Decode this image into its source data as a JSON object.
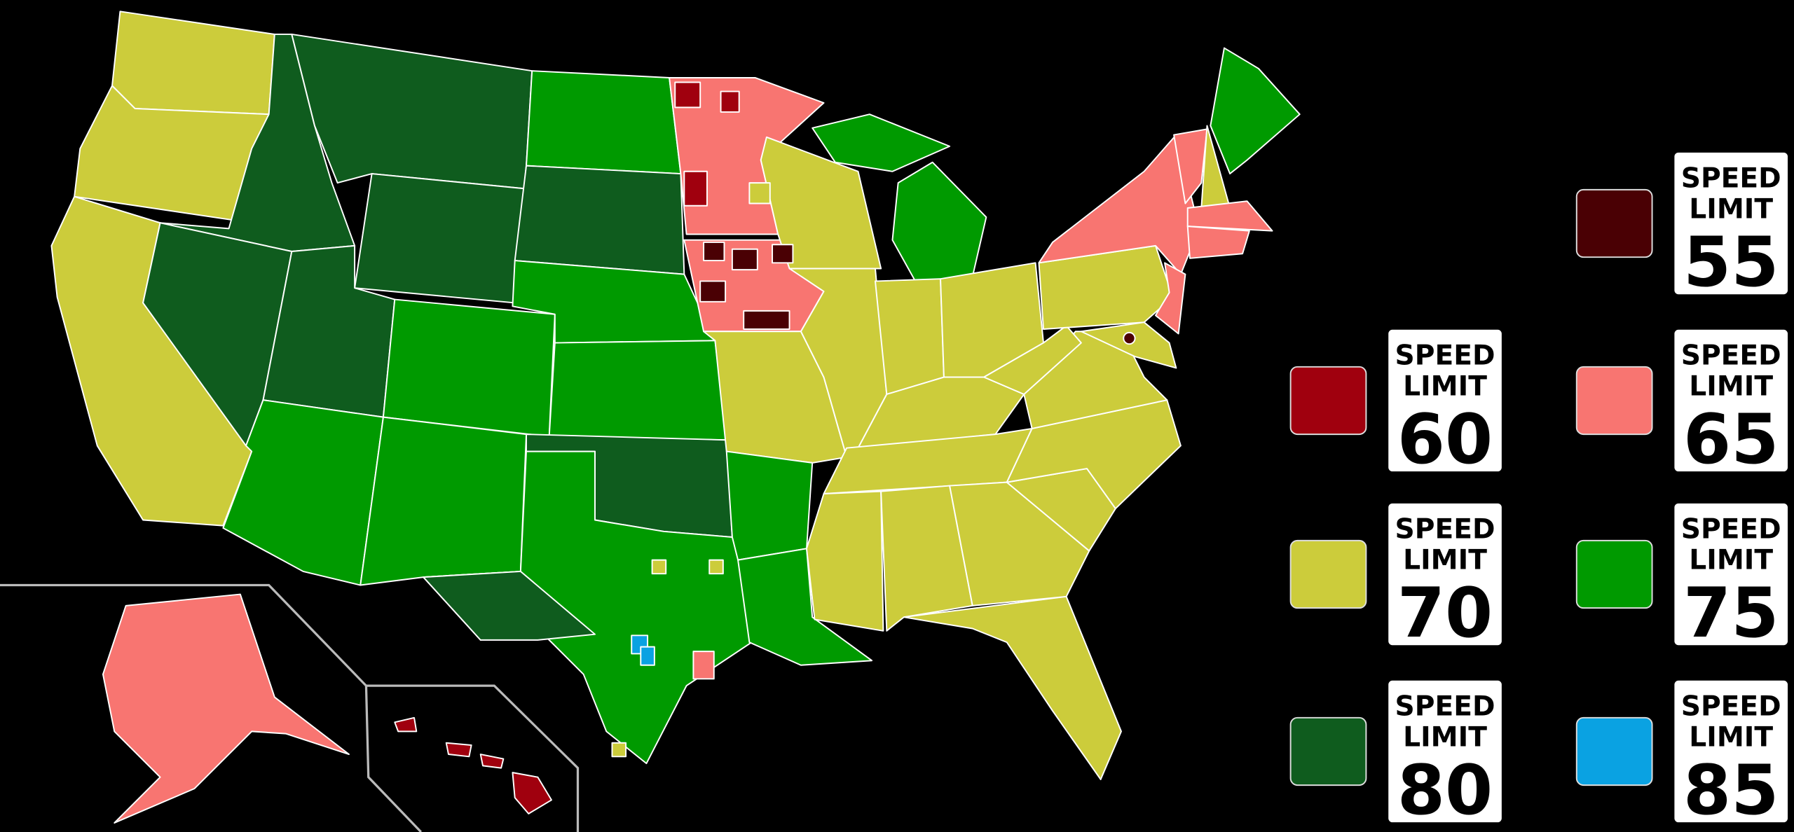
{
  "legend": {
    "items": [
      {
        "speed": "SPEED",
        "limit": "LIMIT",
        "number": "55",
        "color": "#4a0004"
      },
      {
        "speed": "SPEED",
        "limit": "LIMIT",
        "number": "60",
        "color": "#a0000e"
      },
      {
        "speed": "SPEED",
        "limit": "LIMIT",
        "number": "65",
        "color": "#f87571"
      },
      {
        "speed": "SPEED",
        "limit": "LIMIT",
        "number": "70",
        "color": "#cccc3b"
      },
      {
        "speed": "SPEED",
        "limit": "LIMIT",
        "number": "75",
        "color": "#009a00"
      },
      {
        "speed": "SPEED",
        "limit": "LIMIT",
        "number": "80",
        "color": "#0f5c1e"
      },
      {
        "speed": "SPEED",
        "limit": "LIMIT",
        "number": "85",
        "color": "#0aa2e2"
      }
    ]
  }
}
